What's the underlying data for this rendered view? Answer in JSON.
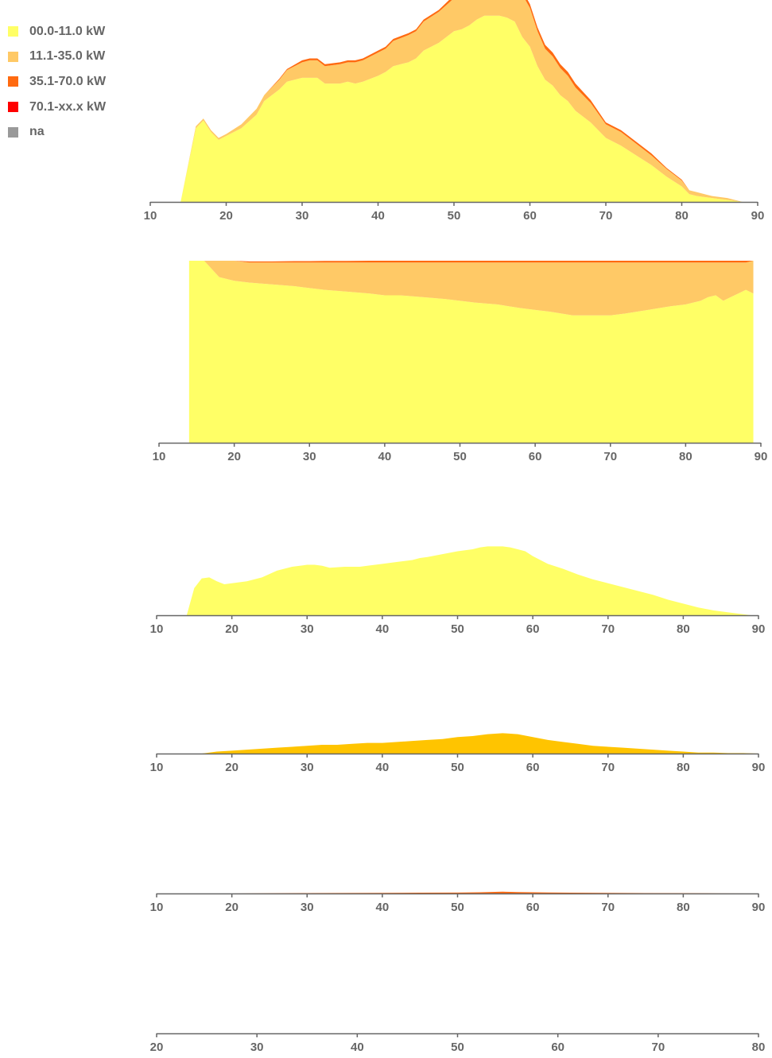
{
  "legend": {
    "items": [
      {
        "label": "00.0-11.0 kW",
        "color": "#ffff66"
      },
      {
        "label": "11.1-35.0 kW",
        "color": "#ffc966"
      },
      {
        "label": "35.1-70.0 kW",
        "color": "#ff6a10"
      },
      {
        "label": "70.1-xx.x kW",
        "color": "#ff0000"
      },
      {
        "label": "na",
        "color": "#999999"
      }
    ]
  },
  "chart_data": [
    {
      "type": "area",
      "stacked": true,
      "x": [
        14,
        16,
        17,
        18,
        19,
        20,
        22,
        24,
        25,
        27,
        28,
        30,
        31,
        32,
        33,
        35,
        36,
        37,
        38,
        40,
        41,
        42,
        44,
        45,
        46,
        48,
        50,
        51,
        52,
        53,
        54,
        55,
        56,
        57,
        58,
        59,
        60,
        61,
        62,
        63,
        64,
        65,
        66,
        68,
        70,
        72,
        74,
        76,
        78,
        80,
        81,
        82,
        84,
        86,
        88,
        89
      ],
      "series": [
        {
          "name": "00.0-11.0 kW",
          "color": "#ffff66",
          "values": [
            0,
            38,
            42,
            36,
            32,
            34,
            38,
            45,
            52,
            58,
            62,
            64,
            64,
            64,
            61,
            61,
            62,
            61,
            62,
            65,
            67,
            70,
            72,
            74,
            78,
            82,
            88,
            89,
            91,
            94,
            96,
            96,
            96,
            95,
            93,
            85,
            80,
            70,
            63,
            60,
            55,
            52,
            47,
            41,
            33,
            29,
            24,
            19,
            13,
            8,
            4,
            3,
            2,
            1,
            0,
            0
          ]
        },
        {
          "name": "11.1-35.0 kW",
          "color": "#ffc966",
          "values": [
            0,
            1,
            1,
            1,
            1,
            1,
            2,
            3,
            3,
            5,
            6,
            8,
            9,
            9,
            9,
            10,
            10,
            11,
            11,
            12,
            12,
            13,
            14,
            14,
            15,
            16,
            17,
            18,
            19,
            20,
            22,
            22,
            22,
            22,
            22,
            22,
            20,
            18,
            16,
            15,
            14,
            13,
            12,
            10,
            7,
            7,
            6,
            5,
            4,
            3,
            2,
            2,
            1,
            1,
            0,
            0
          ]
        },
        {
          "name": "35.1-70.0 kW",
          "color": "#ff6a10",
          "values": [
            0,
            0,
            0,
            0,
            0,
            0,
            0,
            0,
            0,
            0.5,
            0.5,
            1,
            1,
            1,
            1,
            1,
            1,
            1,
            1,
            1,
            1,
            1,
            1,
            1,
            1,
            1,
            1.5,
            1.5,
            2,
            2,
            3,
            3,
            3,
            2.5,
            2.5,
            2,
            2,
            2,
            2,
            2,
            2,
            2,
            2,
            1.5,
            1,
            1,
            1,
            1,
            0.5,
            0.5,
            0,
            0,
            0,
            0,
            0,
            0
          ]
        },
        {
          "name": "70.1-xx.x kW",
          "color": "#ff0000",
          "values": [
            0,
            0,
            0,
            0,
            0,
            0,
            0,
            0,
            0,
            0,
            0,
            0,
            0,
            0,
            0,
            0,
            0,
            0,
            0,
            0,
            0,
            0,
            0,
            0,
            0,
            0,
            0,
            0,
            0,
            0.3,
            0.3,
            0.3,
            0.5,
            0.3,
            0.3,
            0,
            0,
            0,
            0,
            0,
            0,
            0,
            0,
            0,
            0,
            0,
            0,
            0,
            0,
            0,
            0,
            0,
            0,
            0,
            0,
            0
          ]
        }
      ],
      "xlim": [
        10,
        90
      ],
      "x_ticks": [
        "10",
        "20",
        "30",
        "40",
        "50",
        "60",
        "70",
        "80",
        "90"
      ]
    },
    {
      "type": "area",
      "stacked": true,
      "normalized": true,
      "x": [
        14,
        16,
        18,
        20,
        22,
        25,
        28,
        30,
        32,
        35,
        38,
        40,
        42,
        45,
        48,
        50,
        52,
        55,
        58,
        60,
        62,
        65,
        68,
        70,
        72,
        75,
        78,
        80,
        82,
        83,
        84,
        85,
        86,
        87,
        88,
        89
      ],
      "series": [
        {
          "name": "00.0-11.0 kW",
          "color": "#ffff66",
          "values": [
            100,
            100,
            91,
            89,
            88,
            87,
            86,
            85,
            84,
            83,
            82,
            81,
            81,
            80,
            79,
            78,
            77,
            76,
            74,
            73,
            72,
            70,
            70,
            70,
            71,
            73,
            75,
            76,
            78,
            80,
            81,
            78,
            80,
            82,
            84,
            82
          ]
        },
        {
          "name": "11.1-35.0 kW",
          "color": "#ffc966",
          "values": [
            0,
            0,
            9,
            11,
            11,
            12,
            13,
            14,
            15,
            16,
            17,
            18,
            18,
            19,
            20,
            21,
            22,
            23,
            25,
            26,
            27,
            29,
            29,
            29,
            28,
            26,
            24,
            23,
            21,
            19,
            18,
            21,
            19,
            17,
            15,
            18
          ]
        },
        {
          "name": "35.1-70.0 kW",
          "color": "#ff6a10",
          "values": [
            0,
            0,
            0,
            0,
            0.6,
            0.6,
            0.8,
            0.8,
            0.9,
            0.9,
            1,
            1,
            1,
            1,
            1,
            1,
            1,
            1,
            1,
            1,
            1,
            1,
            1,
            1,
            1,
            1,
            1,
            1,
            1,
            1,
            1,
            1,
            1,
            1,
            1,
            0
          ]
        },
        {
          "name": "70.1-xx.x kW",
          "color": "#ff0000",
          "values": [
            0,
            0,
            0,
            0,
            0,
            0,
            0,
            0,
            0,
            0,
            0,
            0,
            0,
            0,
            0,
            0,
            0,
            0,
            0,
            0,
            0,
            0,
            0,
            0,
            0,
            0,
            0,
            0,
            0,
            0,
            0,
            0,
            0,
            0,
            0,
            0
          ]
        }
      ],
      "xlim": [
        10,
        90
      ],
      "x_ticks": [
        "10",
        "20",
        "30",
        "40",
        "50",
        "60",
        "70",
        "80",
        "90"
      ]
    },
    {
      "type": "area",
      "x": [
        14,
        15,
        16,
        17,
        18,
        19,
        20,
        22,
        24,
        26,
        28,
        30,
        31,
        32,
        33,
        35,
        36,
        37,
        38,
        40,
        42,
        44,
        45,
        46,
        48,
        50,
        52,
        53,
        54,
        55,
        56,
        57,
        58,
        59,
        60,
        61,
        62,
        64,
        66,
        68,
        70,
        72,
        74,
        76,
        78,
        80,
        82,
        84,
        86,
        88,
        89
      ],
      "series": [
        {
          "name": "00.0-11.0 kW",
          "color": "#ffff66",
          "values": [
            0,
            28,
            38,
            39,
            35,
            32,
            33,
            35,
            39,
            46,
            50,
            52,
            52,
            51,
            49,
            50,
            50,
            50,
            51,
            53,
            55,
            57,
            59,
            60,
            63,
            66,
            68,
            70,
            71,
            71,
            71,
            70,
            68,
            66,
            61,
            57,
            53,
            48,
            42,
            37,
            33,
            29,
            25,
            21,
            16,
            12,
            8,
            5,
            3,
            1,
            0
          ]
        }
      ],
      "xlim": [
        10,
        90
      ],
      "x_ticks": [
        "10",
        "20",
        "30",
        "40",
        "50",
        "60",
        "70",
        "80",
        "90"
      ]
    },
    {
      "type": "area",
      "x": [
        16,
        18,
        20,
        22,
        24,
        26,
        28,
        30,
        32,
        34,
        36,
        38,
        40,
        42,
        44,
        46,
        48,
        50,
        52,
        54,
        56,
        58,
        60,
        62,
        64,
        66,
        68,
        70,
        72,
        74,
        76,
        78,
        80,
        82,
        84,
        86,
        88,
        90
      ],
      "series": [
        {
          "name": "11.1-35.0 kW",
          "color": "#ffc400",
          "values": [
            0,
            2,
            3,
            4,
            5,
            6,
            7,
            8,
            9,
            9,
            10,
            11,
            11,
            12,
            13,
            14,
            15,
            17,
            18,
            20,
            21,
            20,
            17,
            14,
            12,
            10,
            8,
            7,
            6,
            5,
            4,
            3,
            2,
            1,
            1,
            0.5,
            0.5,
            0
          ]
        }
      ],
      "xlim": [
        10,
        90
      ],
      "x_ticks": [
        "10",
        "20",
        "30",
        "40",
        "50",
        "60",
        "70",
        "80",
        "90"
      ]
    },
    {
      "type": "area",
      "x": [
        20,
        25,
        30,
        35,
        40,
        45,
        50,
        53,
        55,
        56,
        57,
        58,
        60,
        62,
        65,
        70,
        75,
        80,
        85,
        90
      ],
      "series": [
        {
          "name": "35.1-70.0 kW",
          "color": "#ff6a10",
          "values": [
            0,
            0.2,
            0.4,
            0.5,
            0.6,
            0.8,
            0.9,
            1.2,
            1.6,
            1.8,
            1.6,
            1.4,
            1.2,
            1.0,
            0.8,
            0.6,
            0.4,
            0.3,
            0.1,
            0
          ]
        }
      ],
      "xlim": [
        10,
        90
      ],
      "x_ticks": [
        "10",
        "20",
        "30",
        "40",
        "50",
        "60",
        "70",
        "80",
        "90"
      ]
    },
    {
      "type": "area",
      "x": [
        20,
        80
      ],
      "series": [
        {
          "name": "70.1-xx.x kW",
          "color": "#ff0000",
          "values": [
            0,
            0
          ]
        }
      ],
      "xlim": [
        20,
        80
      ],
      "x_ticks": [
        "20",
        "30",
        "40",
        "50",
        "60",
        "70",
        "80"
      ]
    }
  ]
}
